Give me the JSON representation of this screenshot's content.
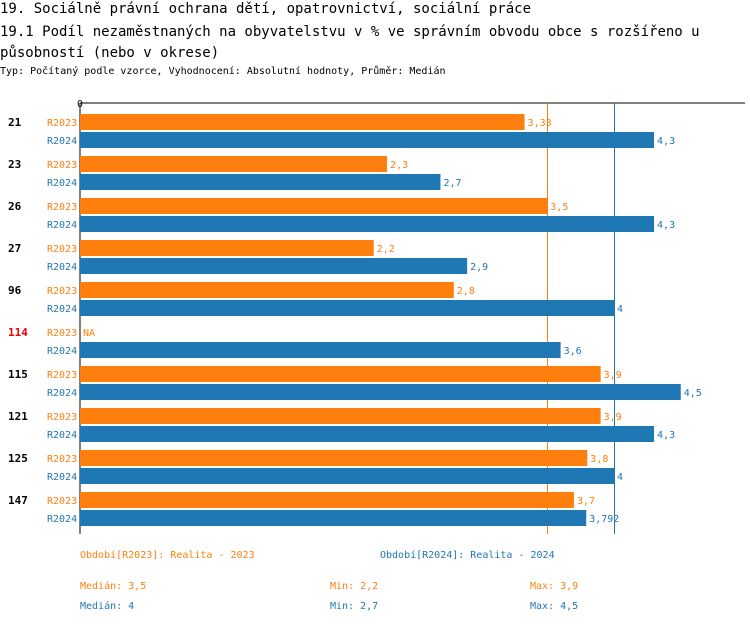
{
  "header": {
    "title": "19. Sociálně právní ochrana dětí, opatrovnictví, sociální práce",
    "subtitle": "19.1 Podíl nezaměstnaných na obyvatelstvu v % ve správním obvodu obce s rozšířeno u působností (nebo v okrese)",
    "meta": "Typ: Počítaný podle vzorce, Vyhodnocení: Absolutní hodnoty, Průměr: Medián"
  },
  "colors": {
    "r2023": "#ff7f0e",
    "r2024": "#1f77b4",
    "highlight": "#ee0000"
  },
  "chart_data": {
    "type": "bar",
    "orientation": "horizontal",
    "axis_zero_label": "0",
    "xlim": [
      0,
      4.55
    ],
    "categories": [
      "21",
      "23",
      "26",
      "27",
      "96",
      "114",
      "115",
      "121",
      "125",
      "147"
    ],
    "highlighted_category": "114",
    "na_label": "NA",
    "series": [
      {
        "name": "R2023",
        "values": [
          3.33,
          2.3,
          3.5,
          2.2,
          2.8,
          null,
          3.9,
          3.9,
          3.8,
          3.7
        ],
        "labels": [
          "3,33",
          "2,3",
          "3,5",
          "2,2",
          "2,8",
          "NA",
          "3,9",
          "3,9",
          "3,8",
          "3,7"
        ]
      },
      {
        "name": "R2024",
        "values": [
          4.3,
          2.7,
          4.3,
          2.9,
          4,
          3.6,
          4.5,
          4.3,
          4,
          3.792
        ],
        "labels": [
          "4,3",
          "2,7",
          "4,3",
          "2,9",
          "4",
          "3,6",
          "4,5",
          "4,3",
          "4",
          "3,792"
        ]
      }
    ],
    "median_lines": [
      {
        "series": "R2023",
        "value": 3.5
      },
      {
        "series": "R2024",
        "value": 4
      }
    ]
  },
  "legend": {
    "r2023": "Období[R2023]: Realita - 2023",
    "r2024": "Období[R2024]: Realita - 2024"
  },
  "stats": {
    "r2023": {
      "median": "Medián: 3,5",
      "min": "Min: 2,2",
      "max": "Max: 3,9"
    },
    "r2024": {
      "median": "Medián: 4",
      "min": "Min: 2,7",
      "max": "Max: 4,5"
    }
  }
}
